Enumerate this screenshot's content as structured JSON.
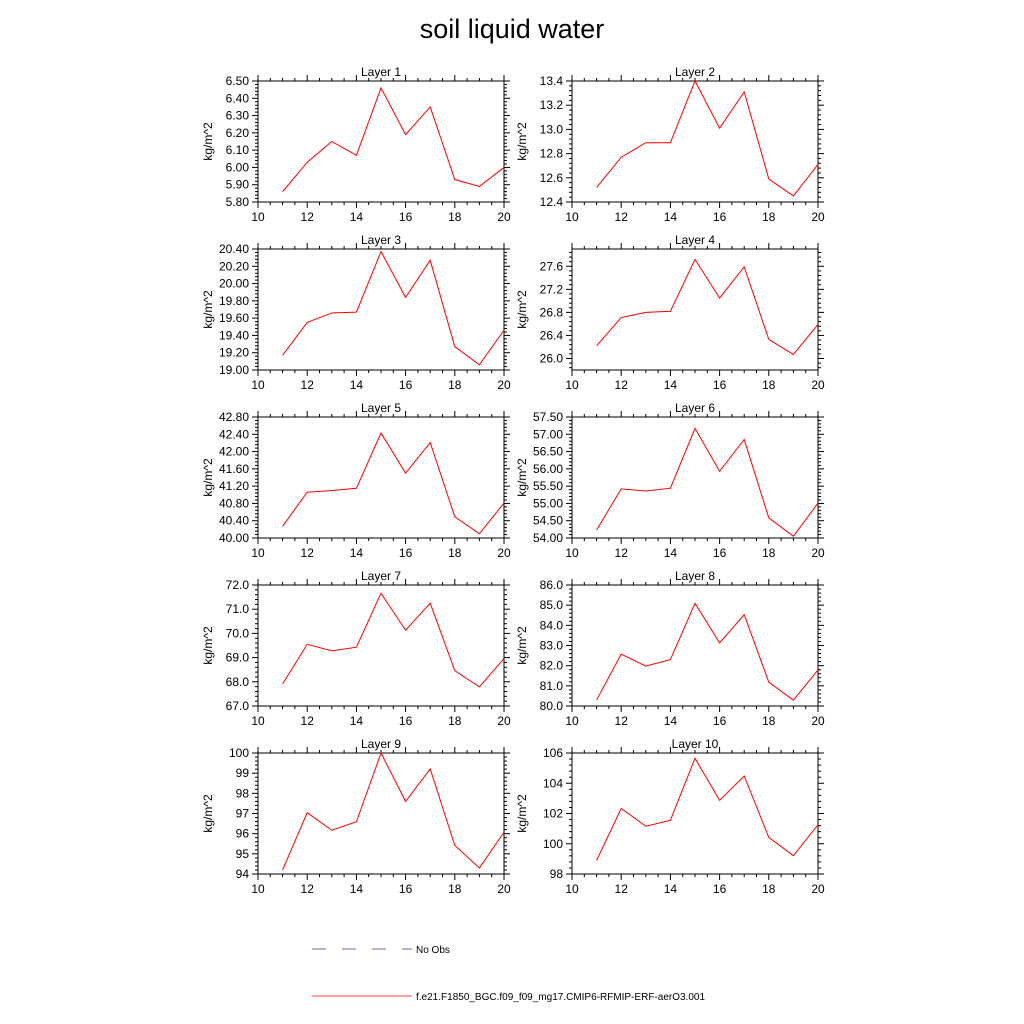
{
  "title": "soil liquid water",
  "chart_data": [
    {
      "type": "line",
      "title": "Layer 1",
      "ylabel": "kg/m^2",
      "xlabel": "",
      "xlim": [
        10,
        20
      ],
      "ylim": [
        5.8,
        6.5
      ],
      "xticks": [
        10,
        12,
        14,
        16,
        18,
        20
      ],
      "yticks": [
        "5.80",
        "5.90",
        "6.00",
        "6.10",
        "6.20",
        "6.30",
        "6.40",
        "6.50"
      ],
      "x": [
        11,
        12,
        13,
        14,
        15,
        16,
        17,
        18,
        19,
        20
      ],
      "series": [
        {
          "values": [
            5.86,
            6.03,
            6.15,
            6.07,
            6.46,
            6.19,
            6.35,
            5.93,
            5.89,
            6.0
          ],
          "color": "#ff0000"
        }
      ]
    },
    {
      "type": "line",
      "title": "Layer 2",
      "ylabel": "kg/m^2",
      "xlabel": "",
      "xlim": [
        10,
        20
      ],
      "ylim": [
        12.4,
        13.4
      ],
      "xticks": [
        10,
        12,
        14,
        16,
        18,
        20
      ],
      "yticks": [
        "12.4",
        "12.6",
        "12.8",
        "13.0",
        "13.2",
        "13.4"
      ],
      "x": [
        11,
        12,
        13,
        14,
        15,
        16,
        17,
        18,
        19,
        20
      ],
      "series": [
        {
          "values": [
            12.52,
            12.77,
            12.89,
            12.89,
            13.4,
            13.01,
            13.31,
            12.59,
            12.45,
            12.71
          ],
          "color": "#ff0000"
        }
      ]
    },
    {
      "type": "line",
      "title": "Layer 3",
      "ylabel": "kg/m^2",
      "xlabel": "",
      "xlim": [
        10,
        20
      ],
      "ylim": [
        19.0,
        20.4
      ],
      "xticks": [
        10,
        12,
        14,
        16,
        18,
        20
      ],
      "yticks": [
        "19.00",
        "19.20",
        "19.40",
        "19.60",
        "19.80",
        "20.00",
        "20.20",
        "20.40"
      ],
      "x": [
        11,
        12,
        13,
        14,
        15,
        16,
        17,
        18,
        19,
        20
      ],
      "series": [
        {
          "values": [
            19.17,
            19.55,
            19.66,
            19.67,
            20.37,
            19.84,
            20.27,
            19.27,
            19.06,
            19.46
          ],
          "color": "#ff0000"
        }
      ]
    },
    {
      "type": "line",
      "title": "Layer 4",
      "ylabel": "kg/m^2",
      "xlabel": "",
      "xlim": [
        10,
        20
      ],
      "ylim": [
        25.8,
        27.9
      ],
      "xticks": [
        10,
        12,
        14,
        16,
        18,
        20
      ],
      "yticks": [
        "26.0",
        "26.4",
        "26.8",
        "27.2",
        "27.6"
      ],
      "x": [
        11,
        12,
        13,
        14,
        15,
        16,
        17,
        18,
        19,
        20
      ],
      "series": [
        {
          "values": [
            26.22,
            26.71,
            26.8,
            26.82,
            27.72,
            27.05,
            27.59,
            26.33,
            26.07,
            26.59
          ],
          "color": "#ff0000"
        }
      ]
    },
    {
      "type": "line",
      "title": "Layer 5",
      "ylabel": "kg/m^2",
      "xlabel": "",
      "xlim": [
        10,
        20
      ],
      "ylim": [
        40.0,
        42.8
      ],
      "xticks": [
        10,
        12,
        14,
        16,
        18,
        20
      ],
      "yticks": [
        "40.00",
        "40.40",
        "40.80",
        "41.20",
        "41.60",
        "42.00",
        "42.40",
        "42.80"
      ],
      "x": [
        11,
        12,
        13,
        14,
        15,
        16,
        17,
        18,
        19,
        20
      ],
      "series": [
        {
          "values": [
            40.27,
            41.06,
            41.1,
            41.15,
            42.43,
            41.5,
            42.21,
            40.49,
            40.1,
            40.81
          ],
          "color": "#ff0000"
        }
      ]
    },
    {
      "type": "line",
      "title": "Layer 6",
      "ylabel": "kg/m^2",
      "xlabel": "",
      "xlim": [
        10,
        20
      ],
      "ylim": [
        54.0,
        57.5
      ],
      "xticks": [
        10,
        12,
        14,
        16,
        18,
        20
      ],
      "yticks": [
        "54.00",
        "54.50",
        "55.00",
        "55.50",
        "56.00",
        "56.50",
        "57.00",
        "57.50"
      ],
      "x": [
        11,
        12,
        13,
        14,
        15,
        16,
        17,
        18,
        19,
        20
      ],
      "series": [
        {
          "values": [
            54.23,
            55.42,
            55.36,
            55.44,
            57.17,
            55.93,
            56.85,
            54.58,
            54.05,
            55.01
          ],
          "color": "#ff0000"
        }
      ]
    },
    {
      "type": "line",
      "title": "Layer 7",
      "ylabel": "kg/m^2",
      "xlabel": "",
      "xlim": [
        10,
        20
      ],
      "ylim": [
        67.0,
        72.0
      ],
      "xticks": [
        10,
        12,
        14,
        16,
        18,
        20
      ],
      "yticks": [
        "67.0",
        "68.0",
        "69.0",
        "70.0",
        "71.0",
        "72.0"
      ],
      "x": [
        11,
        12,
        13,
        14,
        15,
        16,
        17,
        18,
        19,
        20
      ],
      "series": [
        {
          "values": [
            67.91,
            69.55,
            69.28,
            69.43,
            71.66,
            70.13,
            71.25,
            68.46,
            67.79,
            68.96
          ],
          "color": "#ff0000"
        }
      ]
    },
    {
      "type": "line",
      "title": "Layer 8",
      "ylabel": "kg/m^2",
      "xlabel": "",
      "xlim": [
        10,
        20
      ],
      "ylim": [
        80.0,
        86.0
      ],
      "xticks": [
        10,
        12,
        14,
        16,
        18,
        20
      ],
      "yticks": [
        "80.0",
        "81.0",
        "82.0",
        "83.0",
        "84.0",
        "85.0",
        "86.0"
      ],
      "x": [
        11,
        12,
        13,
        14,
        15,
        16,
        17,
        18,
        19,
        20
      ],
      "series": [
        {
          "values": [
            80.3,
            82.57,
            81.98,
            82.3,
            85.09,
            83.13,
            84.53,
            81.18,
            80.29,
            81.79
          ],
          "color": "#ff0000"
        }
      ]
    },
    {
      "type": "line",
      "title": "Layer 9",
      "ylabel": "kg/m^2",
      "xlabel": "",
      "xlim": [
        10,
        20
      ],
      "ylim": [
        94,
        100
      ],
      "xticks": [
        10,
        12,
        14,
        16,
        18,
        20
      ],
      "yticks": [
        "94",
        "95",
        "96",
        "97",
        "98",
        "99",
        "100"
      ],
      "x": [
        11,
        12,
        13,
        14,
        15,
        16,
        17,
        18,
        19,
        20
      ],
      "series": [
        {
          "values": [
            94.2,
            97.04,
            96.17,
            96.59,
            100.0,
            97.6,
            99.21,
            95.42,
            94.3,
            96.07
          ],
          "color": "#ff0000"
        }
      ]
    },
    {
      "type": "line",
      "title": "Layer 10",
      "ylabel": "kg/m^2",
      "xlabel": "",
      "xlim": [
        10,
        20
      ],
      "ylim": [
        98,
        106
      ],
      "xticks": [
        10,
        12,
        14,
        16,
        18,
        20
      ],
      "yticks": [
        "98",
        "100",
        "102",
        "104",
        "106"
      ],
      "x": [
        11,
        12,
        13,
        14,
        15,
        16,
        17,
        18,
        19,
        20
      ],
      "series": [
        {
          "values": [
            98.9,
            102.33,
            101.16,
            101.55,
            105.65,
            102.87,
            104.48,
            100.42,
            99.21,
            101.25
          ],
          "color": "#ff0000"
        }
      ]
    }
  ],
  "legend": {
    "position": "bottom",
    "items": [
      {
        "label": "No Obs",
        "color": "#3a3aa0",
        "style": "dashed"
      },
      {
        "label": "f.e21.F1850_BGC.f09_f09_mg17.CMIP6-RFMIP-ERF-aerO3.001",
        "color": "#ff0000",
        "style": "solid"
      }
    ]
  }
}
